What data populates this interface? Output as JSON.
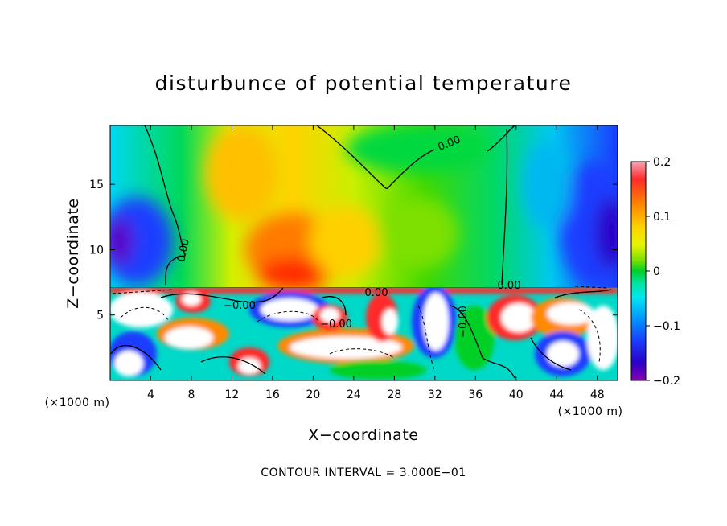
{
  "chart_data": {
    "type": "heatmap",
    "title": "disturbunce of potential temperature",
    "xlabel": "X−coordinate",
    "ylabel": "Z−coordinate",
    "x_unit_left": "(×1000 m)",
    "x_unit_right": "(×1000 m)",
    "xlim": [
      0,
      50
    ],
    "ylim": [
      0,
      19.5
    ],
    "x_ticks": [
      4,
      8,
      12,
      16,
      20,
      24,
      28,
      32,
      36,
      40,
      44,
      48
    ],
    "y_ticks": [
      5,
      10,
      15
    ],
    "colorbar": {
      "min": -0.2,
      "max": 0.2,
      "ticks": [
        0.2,
        0.1,
        0,
        -0.1,
        -0.2
      ],
      "colors": [
        "#f4a6b6",
        "#ff2a2a",
        "#ff8a00",
        "#ffd300",
        "#e6f500",
        "#7de000",
        "#00d028",
        "#00e6a8",
        "#00e8f0",
        "#0094ff",
        "#1a3cff",
        "#2a00c8",
        "#8a00b4"
      ]
    },
    "contour_interval_text": "CONTOUR INTERVAL = 3.000E−01",
    "contour_labels": [
      "0.00",
      "0.00",
      "−0.00",
      "−0.00",
      "−0.00",
      "0.00",
      "0.00"
    ]
  }
}
